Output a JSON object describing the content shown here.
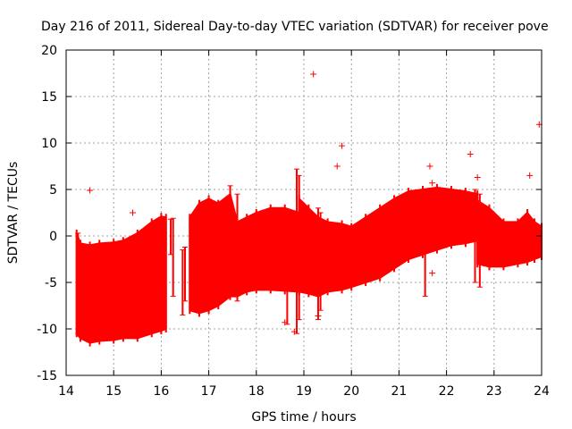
{
  "chart_data": {
    "type": "scatter",
    "title": "Day 216 of 2011, Sidereal Day-to-day VTEC variation (SDTVAR) for receiver pove",
    "xlabel": "GPS time / hours",
    "ylabel": "SDTVAR / TECUs",
    "xlim": [
      14,
      24
    ],
    "ylim": [
      -15,
      20
    ],
    "x_ticks": [
      "14",
      "15",
      "16",
      "17",
      "18",
      "19",
      "20",
      "21",
      "22",
      "23",
      "24"
    ],
    "y_ticks": [
      "-15",
      "-10",
      "-5",
      "0",
      "5",
      "10",
      "15",
      "20"
    ],
    "grid": true,
    "marker": "+",
    "color": "#ff0000",
    "band": {
      "description": "dense envelope of points (upper and lower bound, TECU)",
      "x": [
        14.22,
        14.3,
        14.5,
        14.7,
        15.0,
        15.2,
        15.5,
        15.8,
        16.0,
        16.1
      ],
      "upper": [
        0.3,
        -0.8,
        -1.0,
        -0.8,
        -0.7,
        -0.5,
        0.3,
        1.5,
        2.1,
        2.0
      ],
      "lower": [
        -10.5,
        -11.0,
        -11.5,
        -11.3,
        -11.2,
        -11.0,
        -11.0,
        -10.5,
        -10.2,
        -10.0
      ],
      "segments": [
        {
          "x": [
            16.6,
            16.8,
            17.0,
            17.2,
            17.45,
            17.6,
            17.8,
            18.0,
            18.3,
            18.6,
            18.9
          ],
          "upper": [
            2.0,
            3.5,
            4.0,
            3.5,
            4.5,
            1.5,
            2.0,
            2.5,
            3.0,
            3.0,
            2.5
          ],
          "lower": [
            -8.0,
            -8.3,
            -8.0,
            -7.5,
            -6.5,
            -6.5,
            -6.0,
            -5.8,
            -5.8,
            -5.9,
            -6.0
          ]
        },
        {
          "x": [
            18.9,
            19.1,
            19.3,
            19.5,
            19.8,
            20.0,
            20.3,
            20.6,
            20.9,
            21.2,
            21.5,
            21.8,
            22.1,
            22.4,
            22.65
          ],
          "upper": [
            4.0,
            3.0,
            2.0,
            1.5,
            1.3,
            1.0,
            2.0,
            3.0,
            4.0,
            4.8,
            5.0,
            5.2,
            5.0,
            4.8,
            4.5
          ],
          "lower": [
            -6.0,
            -6.2,
            -6.5,
            -6.0,
            -5.8,
            -5.5,
            -5.0,
            -4.5,
            -3.5,
            -2.5,
            -2.0,
            -1.5,
            -1.0,
            -0.8,
            -0.5
          ]
        },
        {
          "x": [
            22.65,
            22.9,
            23.2,
            23.5,
            23.7,
            23.85,
            24.0
          ],
          "upper": [
            3.8,
            3.0,
            1.5,
            1.5,
            2.5,
            1.5,
            1.0
          ],
          "lower": [
            -3.0,
            -3.3,
            -3.3,
            -3.0,
            -2.8,
            -2.5,
            -2.2
          ]
        }
      ]
    },
    "outliers": [
      {
        "x": 14.5,
        "y": 4.9
      },
      {
        "x": 15.4,
        "y": 2.5
      },
      {
        "x": 19.2,
        "y": 17.4
      },
      {
        "x": 19.8,
        "y": 9.7
      },
      {
        "x": 19.7,
        "y": 7.5
      },
      {
        "x": 21.65,
        "y": 7.5
      },
      {
        "x": 21.7,
        "y": 5.7
      },
      {
        "x": 21.7,
        "y": -4.0
      },
      {
        "x": 22.5,
        "y": 8.8
      },
      {
        "x": 22.65,
        "y": 6.3
      },
      {
        "x": 23.75,
        "y": 6.5
      },
      {
        "x": 23.95,
        "y": 12.0
      },
      {
        "x": 18.6,
        "y": -9.3
      },
      {
        "x": 18.8,
        "y": -10.3
      },
      {
        "x": 19.3,
        "y": -8.6
      }
    ],
    "spikes": [
      {
        "x": 14.25,
        "low": -10.5,
        "high": 0.3
      },
      {
        "x": 16.2,
        "low": -2.0,
        "high": 1.8
      },
      {
        "x": 16.25,
        "low": -6.5,
        "high": 1.9
      },
      {
        "x": 16.45,
        "low": -8.5,
        "high": -1.5
      },
      {
        "x": 16.5,
        "low": -7.0,
        "high": -1.2
      },
      {
        "x": 17.45,
        "low": -6.5,
        "high": 5.4
      },
      {
        "x": 17.6,
        "low": -7.0,
        "high": 4.5
      },
      {
        "x": 18.65,
        "low": -9.5,
        "high": 1.0
      },
      {
        "x": 18.85,
        "low": -10.5,
        "high": 7.2
      },
      {
        "x": 18.9,
        "low": -9.0,
        "high": 6.5
      },
      {
        "x": 19.3,
        "low": -9.0,
        "high": 3.0
      },
      {
        "x": 19.35,
        "low": -8.0,
        "high": 2.5
      },
      {
        "x": 21.55,
        "low": -6.5,
        "high": 4.0
      },
      {
        "x": 22.6,
        "low": -5.0,
        "high": 5.0
      },
      {
        "x": 22.7,
        "low": -5.5,
        "high": 4.5
      }
    ]
  }
}
